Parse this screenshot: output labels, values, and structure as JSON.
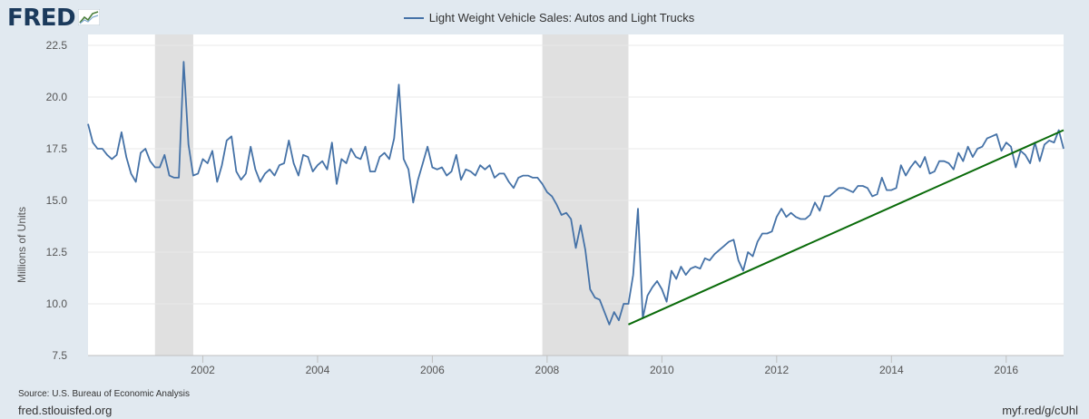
{
  "header": {
    "logo_text": "FRED",
    "legend_label": "Light Weight Vehicle Sales: Autos and Light Trucks"
  },
  "footer": {
    "source": "Source: U.S. Bureau of Economic Analysis",
    "site": "fred.stlouisfed.org",
    "short_url": "myf.red/g/cUhl"
  },
  "colors": {
    "series": "#4572a7",
    "trendline": "#0a6b0a",
    "recession": "#e0e0e0",
    "background": "#e1e9f0",
    "plot_background": "#ffffff",
    "grid": "#e8e8e8"
  },
  "chart_data": {
    "type": "line",
    "title": "",
    "xlabel": "",
    "ylabel": "Millions of Units",
    "ylim": [
      7.5,
      22.5
    ],
    "xlim": [
      "2000-01-01",
      "2017-01-01"
    ],
    "yticks": [
      "7.5",
      "10.0",
      "12.5",
      "15.0",
      "17.5",
      "20.0",
      "22.5"
    ],
    "xticks": [
      "2002",
      "2004",
      "2006",
      "2008",
      "2010",
      "2012",
      "2014",
      "2016"
    ],
    "grid": "horizontal",
    "recessions": [
      {
        "start": "2001-03-01",
        "end": "2001-11-01"
      },
      {
        "start": "2007-12-01",
        "end": "2009-06-01"
      }
    ],
    "series": [
      {
        "name": "Light Weight Vehicle Sales: Autos and Light Trucks",
        "start": "2000-01-01",
        "frequency": "monthly",
        "values": [
          18.7,
          17.8,
          17.5,
          17.5,
          17.2,
          17.0,
          17.2,
          18.3,
          17.1,
          16.3,
          15.9,
          17.3,
          17.5,
          16.9,
          16.6,
          16.6,
          17.2,
          16.2,
          16.1,
          16.1,
          21.7,
          17.7,
          16.2,
          16.3,
          17.0,
          16.8,
          17.4,
          15.9,
          16.7,
          17.9,
          18.1,
          16.4,
          16.0,
          16.3,
          17.6,
          16.5,
          15.9,
          16.3,
          16.5,
          16.2,
          16.7,
          16.8,
          17.9,
          16.8,
          16.2,
          17.2,
          17.1,
          16.4,
          16.7,
          16.9,
          16.5,
          17.8,
          15.8,
          17.0,
          16.8,
          17.5,
          17.1,
          17.0,
          17.6,
          16.4,
          16.4,
          17.1,
          17.3,
          17.0,
          18.0,
          20.6,
          17.0,
          16.5,
          14.9,
          16.0,
          16.8,
          17.6,
          16.6,
          16.5,
          16.6,
          16.2,
          16.4,
          17.2,
          16.0,
          16.5,
          16.4,
          16.2,
          16.7,
          16.5,
          16.7,
          16.1,
          16.3,
          16.3,
          15.9,
          15.6,
          16.1,
          16.2,
          16.2,
          16.1,
          16.1,
          15.8,
          15.4,
          15.2,
          14.8,
          14.3,
          14.4,
          14.1,
          12.7,
          13.8,
          12.6,
          10.7,
          10.3,
          10.2,
          9.6,
          9.0,
          9.6,
          9.2,
          10.0,
          10.0,
          11.4,
          14.6,
          9.3,
          10.4,
          10.8,
          11.1,
          10.7,
          10.1,
          11.6,
          11.2,
          11.8,
          11.4,
          11.7,
          11.8,
          11.7,
          12.2,
          12.1,
          12.4,
          12.6,
          12.8,
          13.0,
          13.1,
          12.1,
          11.6,
          12.5,
          12.3,
          13.0,
          13.4,
          13.4,
          13.5,
          14.2,
          14.6,
          14.2,
          14.4,
          14.2,
          14.1,
          14.1,
          14.3,
          14.9,
          14.5,
          15.2,
          15.2,
          15.4,
          15.6,
          15.6,
          15.5,
          15.4,
          15.7,
          15.7,
          15.6,
          15.2,
          15.3,
          16.1,
          15.5,
          15.5,
          15.6,
          16.7,
          16.2,
          16.6,
          16.9,
          16.6,
          17.1,
          16.3,
          16.4,
          16.9,
          16.9,
          16.8,
          16.5,
          17.3,
          16.9,
          17.6,
          17.1,
          17.5,
          17.6,
          18.0,
          18.1,
          18.2,
          17.4,
          17.8,
          17.6,
          16.6,
          17.4,
          17.2,
          16.8,
          17.8,
          16.9,
          17.7,
          17.9,
          17.8,
          18.4,
          17.5
        ]
      }
    ],
    "annotations": [
      {
        "type": "trendline",
        "from": {
          "x": "2009-06-01",
          "y": 9.0
        },
        "to": {
          "x": "2017-01-01",
          "y": 18.4
        }
      }
    ]
  }
}
